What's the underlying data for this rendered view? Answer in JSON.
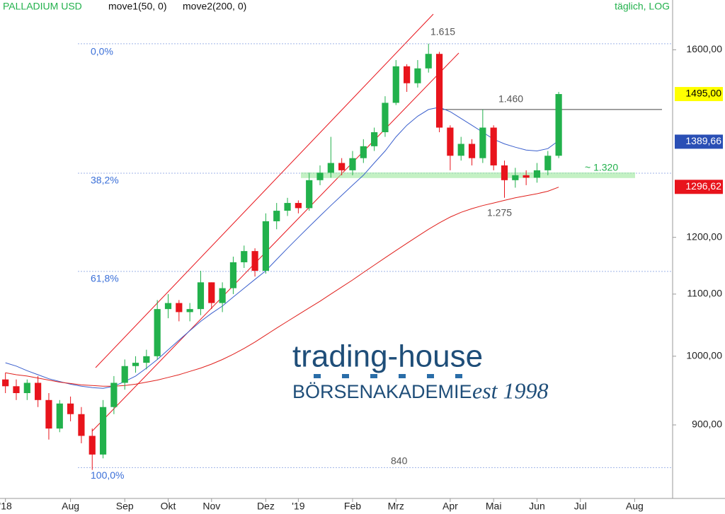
{
  "chart_data": {
    "type": "candlestick",
    "title": "PALLADIUM USD",
    "subtitle": "täglich, LOG",
    "log_scale": true,
    "categories": [
      "'18",
      null,
      null,
      null,
      null,
      null,
      "Aug",
      null,
      null,
      null,
      null,
      "Sep",
      null,
      null,
      null,
      "Okt",
      null,
      null,
      null,
      "Nov",
      null,
      null,
      null,
      null,
      "Dez",
      null,
      null,
      "'19",
      null,
      null,
      null,
      null,
      "Feb",
      null,
      null,
      null,
      "Mrz",
      null,
      null,
      null,
      null,
      "Apr",
      null,
      null,
      null,
      "Mai",
      null,
      null,
      null,
      "Jun",
      null,
      null,
      null,
      "Jul",
      null,
      null,
      null,
      null,
      "Aug",
      null,
      null,
      null
    ],
    "open": [
      965,
      955,
      945,
      960,
      935,
      895,
      930,
      915,
      885,
      860,
      925,
      960,
      985,
      990,
      1000,
      1075,
      1085,
      1070,
      1075,
      1120,
      1085,
      1110,
      1155,
      1175,
      1140,
      1230,
      1250,
      1265,
      1255,
      1310,
      1325,
      1345,
      1330,
      1355,
      1380,
      1410,
      1475,
      1560,
      1520,
      1555,
      1590,
      1420,
      1360,
      1385,
      1355,
      1420,
      1340,
      1310,
      1320,
      1315,
      1330,
      1360,
      null,
      null,
      null,
      null,
      null,
      null,
      null,
      null,
      null,
      null
    ],
    "high": [
      975,
      965,
      965,
      970,
      945,
      935,
      940,
      925,
      895,
      935,
      970,
      995,
      1000,
      1010,
      1090,
      1100,
      1090,
      1085,
      1140,
      1120,
      1120,
      1165,
      1185,
      1180,
      1245,
      1265,
      1275,
      1270,
      1325,
      1340,
      1400,
      1355,
      1370,
      1395,
      1420,
      1490,
      1575,
      1565,
      1575,
      1615,
      1595,
      1425,
      1400,
      1395,
      1460,
      1425,
      1350,
      1335,
      1330,
      1345,
      1370,
      1500,
      null,
      null,
      null,
      null,
      null,
      null,
      null,
      null,
      null,
      null
    ],
    "low": [
      945,
      935,
      935,
      925,
      880,
      890,
      905,
      875,
      840,
      855,
      915,
      950,
      975,
      980,
      995,
      1060,
      1055,
      1055,
      1065,
      1075,
      1070,
      1100,
      1145,
      1130,
      1135,
      1215,
      1240,
      1245,
      1250,
      1300,
      1315,
      1320,
      1320,
      1345,
      1370,
      1400,
      1470,
      1500,
      1510,
      1545,
      1410,
      1330,
      1350,
      1340,
      1345,
      1330,
      1275,
      1295,
      1300,
      1305,
      1320,
      1355,
      null,
      null,
      null,
      null,
      null,
      null,
      null,
      null,
      null,
      null
    ],
    "close": [
      955,
      945,
      960,
      935,
      895,
      930,
      915,
      885,
      860,
      925,
      960,
      985,
      990,
      1000,
      1075,
      1085,
      1070,
      1075,
      1120,
      1085,
      1110,
      1155,
      1175,
      1140,
      1230,
      1250,
      1265,
      1255,
      1310,
      1325,
      1345,
      1330,
      1355,
      1380,
      1410,
      1475,
      1560,
      1520,
      1555,
      1590,
      1420,
      1360,
      1385,
      1355,
      1420,
      1340,
      1310,
      1320,
      1315,
      1330,
      1360,
      1495,
      null,
      null,
      null,
      null,
      null,
      null,
      null,
      null,
      null,
      null
    ],
    "up_color": "#22b14c",
    "down_color": "#e8141c",
    "series": [
      {
        "name": "move1(50, 0)",
        "color": "#3a5fcd",
        "values": [
          990,
          985,
          978,
          972,
          966,
          962,
          958,
          955,
          953,
          952,
          955,
          962,
          970,
          982,
          995,
          1010,
          1025,
          1040,
          1055,
          1068,
          1080,
          1095,
          1110,
          1125,
          1140,
          1160,
          1180,
          1200,
          1220,
          1240,
          1260,
          1280,
          1300,
          1320,
          1345,
          1370,
          1400,
          1425,
          1445,
          1460,
          1465,
          1455,
          1440,
          1425,
          1410,
          1395,
          1385,
          1378,
          1372,
          1370,
          1375,
          1392,
          null,
          null,
          null,
          null,
          null,
          null,
          null,
          null,
          null,
          null
        ]
      },
      {
        "name": "move2(200, 0)",
        "color": "#e0201c",
        "values": [
          975,
          972,
          970,
          967,
          964,
          961,
          959,
          957,
          956,
          955,
          955,
          956,
          958,
          961,
          964,
          968,
          972,
          977,
          982,
          988,
          995,
          1003,
          1012,
          1022,
          1033,
          1044,
          1055,
          1066,
          1077,
          1088,
          1100,
          1112,
          1124,
          1137,
          1150,
          1163,
          1176,
          1189,
          1202,
          1215,
          1227,
          1238,
          1247,
          1254,
          1260,
          1265,
          1270,
          1275,
          1279,
          1283,
          1288,
          1296,
          null,
          null,
          null,
          null,
          null,
          null,
          null,
          null,
          null,
          null
        ]
      }
    ],
    "ylim": [
      804,
      1727
    ],
    "yticks": [
      {
        "value": 900,
        "label": "900,00"
      },
      {
        "value": 1000,
        "label": "1000,00"
      },
      {
        "value": 1100,
        "label": "1100,00"
      },
      {
        "value": 1200,
        "label": "1200,00"
      },
      {
        "value": 1600,
        "label": "1600,00"
      }
    ],
    "levels": [
      {
        "value": 1615,
        "label": "0,0%"
      },
      {
        "value": 1324,
        "label": "38,2%"
      },
      {
        "value": 1139,
        "label": "61,8%"
      },
      {
        "value": 843,
        "label": "100,0%"
      }
    ],
    "annotations": [
      {
        "value": 1615,
        "label": "1.615"
      },
      {
        "value": 1460,
        "label": "1.460"
      },
      {
        "value": 1275,
        "label": "1.275"
      },
      {
        "value": 1320,
        "label": "~ 1.320"
      },
      {
        "value": 840,
        "label": "840"
      }
    ],
    "price_tags": [
      {
        "value": 1495,
        "label": "1495,00",
        "color": "#ffff00"
      },
      {
        "value": 1389.66,
        "label": "1389,66",
        "color": "#2a4fb5"
      },
      {
        "value": 1296.62,
        "label": "1296,62",
        "color": "#e8141c"
      }
    ]
  },
  "logo": {
    "name": "trading-house",
    "subtitle": "BÖRSENAKADEMIE",
    "est": "est 1998"
  }
}
